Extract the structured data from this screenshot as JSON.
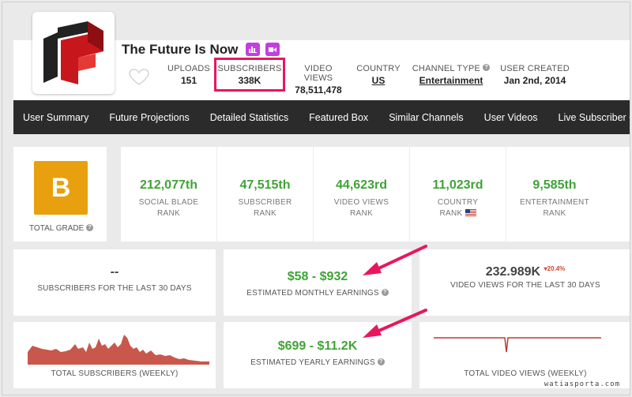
{
  "channel": {
    "title": "The Future Is Now",
    "stats": [
      {
        "label": "UPLOADS",
        "value": "151"
      },
      {
        "label": "SUBSCRIBERS",
        "value": "338K"
      },
      {
        "label": "VIDEO VIEWS",
        "value": "78,511,478"
      },
      {
        "label": "COUNTRY",
        "value": "US"
      },
      {
        "label": "CHANNEL TYPE",
        "value": "Entertainment"
      },
      {
        "label": "USER CREATED",
        "value": "Jan 2nd, 2014"
      }
    ]
  },
  "nav": {
    "items": [
      "User Summary",
      "Future Projections",
      "Detailed Statistics",
      "Featured Box",
      "Similar Channels",
      "User Videos",
      "Live Subscriber C"
    ]
  },
  "grade": {
    "letter": "B",
    "label": "TOTAL GRADE"
  },
  "ranks": [
    {
      "value": "212,077th",
      "line1": "SOCIAL BLADE",
      "line2": "RANK"
    },
    {
      "value": "47,515th",
      "line1": "SUBSCRIBER",
      "line2": "RANK"
    },
    {
      "value": "44,623rd",
      "line1": "VIDEO VIEWS",
      "line2": "RANK"
    },
    {
      "value": "11,023rd",
      "line1": "COUNTRY",
      "line2": "RANK"
    },
    {
      "value": "9,585th",
      "line1": "ENTERTAINMENT",
      "line2": "RANK"
    }
  ],
  "summary": {
    "subs_30": {
      "value": "--",
      "label": "SUBSCRIBERS FOR THE LAST 30 DAYS"
    },
    "monthly": {
      "value": "$58 - $932",
      "label": "ESTIMATED MONTHLY EARNINGS"
    },
    "views_30": {
      "value": "232.989K",
      "delta": "20.4%",
      "label": "VIDEO VIEWS FOR THE LAST 30 DAYS"
    },
    "weekly_subs": {
      "label": "TOTAL SUBSCRIBERS (WEEKLY)"
    },
    "yearly": {
      "value": "$699 - $11.2K",
      "label": "ESTIMATED YEARLY EARNINGS"
    },
    "weekly_views": {
      "label": "TOTAL VIDEO VIEWS (WEEKLY)"
    }
  },
  "colors": {
    "accent_green": "#3fa336",
    "grade_orange": "#e8a00e",
    "highlight_pink": "#e8175d",
    "nav_bg": "#2b2b2b",
    "sparkline": "#c0392b"
  },
  "watermark": "watiasporta.com"
}
